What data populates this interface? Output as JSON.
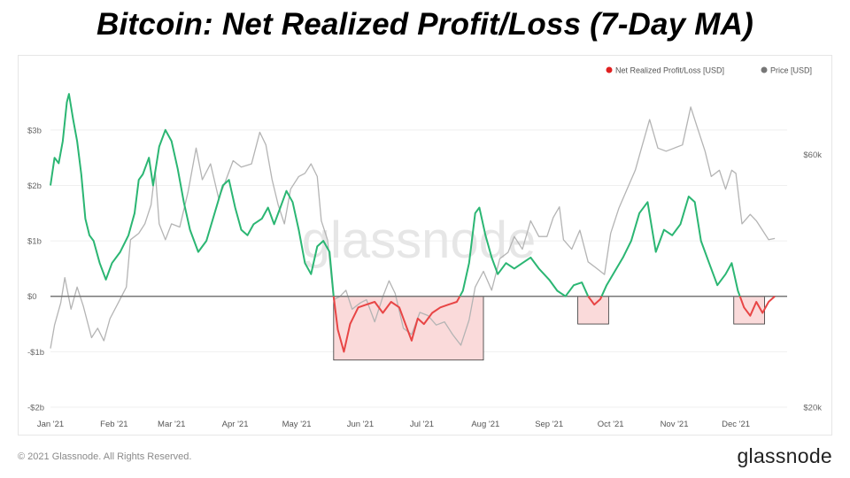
{
  "title": "Bitcoin: Net Realized Profit/Loss (7-Day MA)",
  "footer": {
    "copyright": "© 2021 Glassnode. All Rights Reserved.",
    "brand": "glassnode"
  },
  "watermark": "glassnode",
  "chart_data": {
    "type": "line",
    "title": "Bitcoin: Net Realized Profit/Loss (7-Day MA)",
    "legend": [
      "Net Realized Profit/Loss [USD]",
      "Price [USD]"
    ],
    "legend_position": "top-right",
    "grid": true,
    "x_tick_labels": [
      "Jan '21",
      "Feb '21",
      "Mar '21",
      "Apr '21",
      "May '21",
      "Jun '21",
      "Jul '21",
      "Aug '21",
      "Sep '21",
      "Oct '21",
      "Nov '21",
      "Dec '21"
    ],
    "y_left": {
      "ylim": [
        -2,
        3.7
      ],
      "ticks": [
        -2,
        -1,
        0,
        1,
        2,
        3
      ],
      "tick_labels": [
        "-$2b",
        "-$1b",
        "$0",
        "$1b",
        "$2b",
        "$3b"
      ]
    },
    "y_right": {
      "ylim": [
        20000,
        70000
      ],
      "ticks": [
        20000,
        60000
      ],
      "tick_labels": [
        "$20k",
        "$60k"
      ]
    },
    "colors": {
      "profit": "#2bb673",
      "loss": "#e84545",
      "price": "#b4b4b4",
      "loss_box_fill": "#fadada",
      "loss_box_stroke": "#333333",
      "zero_line": "#777777"
    },
    "series": [
      {
        "name": "Net Realized Profit/Loss [USD]",
        "axis": "left",
        "points": [
          [
            "2021-01-01",
            2.0
          ],
          [
            "2021-01-03",
            2.5
          ],
          [
            "2021-01-05",
            2.4
          ],
          [
            "2021-01-07",
            2.8
          ],
          [
            "2021-01-09",
            3.5
          ],
          [
            "2021-01-10",
            3.65
          ],
          [
            "2021-01-12",
            3.2
          ],
          [
            "2021-01-14",
            2.8
          ],
          [
            "2021-01-16",
            2.2
          ],
          [
            "2021-01-18",
            1.4
          ],
          [
            "2021-01-20",
            1.1
          ],
          [
            "2021-01-22",
            1.0
          ],
          [
            "2021-01-25",
            0.6
          ],
          [
            "2021-01-28",
            0.3
          ],
          [
            "2021-01-31",
            0.6
          ],
          [
            "2021-02-04",
            0.8
          ],
          [
            "2021-02-08",
            1.1
          ],
          [
            "2021-02-11",
            1.5
          ],
          [
            "2021-02-13",
            2.1
          ],
          [
            "2021-02-15",
            2.2
          ],
          [
            "2021-02-18",
            2.5
          ],
          [
            "2021-02-20",
            2.0
          ],
          [
            "2021-02-23",
            2.7
          ],
          [
            "2021-02-26",
            3.0
          ],
          [
            "2021-03-01",
            2.8
          ],
          [
            "2021-03-04",
            2.3
          ],
          [
            "2021-03-07",
            1.7
          ],
          [
            "2021-03-10",
            1.2
          ],
          [
            "2021-03-14",
            0.8
          ],
          [
            "2021-03-18",
            1.0
          ],
          [
            "2021-03-22",
            1.5
          ],
          [
            "2021-03-26",
            2.0
          ],
          [
            "2021-03-29",
            2.1
          ],
          [
            "2021-04-01",
            1.6
          ],
          [
            "2021-04-04",
            1.2
          ],
          [
            "2021-04-07",
            1.1
          ],
          [
            "2021-04-10",
            1.3
          ],
          [
            "2021-04-14",
            1.4
          ],
          [
            "2021-04-17",
            1.6
          ],
          [
            "2021-04-20",
            1.3
          ],
          [
            "2021-04-23",
            1.6
          ],
          [
            "2021-04-26",
            1.9
          ],
          [
            "2021-04-29",
            1.7
          ],
          [
            "2021-05-02",
            1.2
          ],
          [
            "2021-05-05",
            0.6
          ],
          [
            "2021-05-08",
            0.4
          ],
          [
            "2021-05-11",
            0.9
          ],
          [
            "2021-05-14",
            1.0
          ],
          [
            "2021-05-17",
            0.8
          ],
          [
            "2021-05-19",
            0.0
          ],
          [
            "2021-05-21",
            -0.6
          ],
          [
            "2021-05-24",
            -1.0
          ],
          [
            "2021-05-27",
            -0.5
          ],
          [
            "2021-05-31",
            -0.2
          ],
          [
            "2021-06-04",
            -0.15
          ],
          [
            "2021-06-08",
            -0.1
          ],
          [
            "2021-06-12",
            -0.3
          ],
          [
            "2021-06-16",
            -0.1
          ],
          [
            "2021-06-20",
            -0.2
          ],
          [
            "2021-06-23",
            -0.5
          ],
          [
            "2021-06-26",
            -0.8
          ],
          [
            "2021-06-29",
            -0.4
          ],
          [
            "2021-07-02",
            -0.5
          ],
          [
            "2021-07-06",
            -0.3
          ],
          [
            "2021-07-10",
            -0.2
          ],
          [
            "2021-07-14",
            -0.15
          ],
          [
            "2021-07-18",
            -0.1
          ],
          [
            "2021-07-21",
            0.1
          ],
          [
            "2021-07-24",
            0.6
          ],
          [
            "2021-07-27",
            1.5
          ],
          [
            "2021-07-29",
            1.6
          ],
          [
            "2021-08-01",
            1.1
          ],
          [
            "2021-08-04",
            0.7
          ],
          [
            "2021-08-07",
            0.4
          ],
          [
            "2021-08-11",
            0.6
          ],
          [
            "2021-08-15",
            0.5
          ],
          [
            "2021-08-19",
            0.6
          ],
          [
            "2021-08-23",
            0.7
          ],
          [
            "2021-08-27",
            0.5
          ],
          [
            "2021-09-01",
            0.3
          ],
          [
            "2021-09-05",
            0.1
          ],
          [
            "2021-09-09",
            0.0
          ],
          [
            "2021-09-13",
            0.2
          ],
          [
            "2021-09-17",
            0.25
          ],
          [
            "2021-09-20",
            0.0
          ],
          [
            "2021-09-23",
            -0.15
          ],
          [
            "2021-09-26",
            -0.05
          ],
          [
            "2021-09-29",
            0.2
          ],
          [
            "2021-10-03",
            0.45
          ],
          [
            "2021-10-07",
            0.7
          ],
          [
            "2021-10-11",
            1.0
          ],
          [
            "2021-10-15",
            1.5
          ],
          [
            "2021-10-19",
            1.7
          ],
          [
            "2021-10-23",
            0.8
          ],
          [
            "2021-10-27",
            1.2
          ],
          [
            "2021-10-31",
            1.1
          ],
          [
            "2021-11-04",
            1.3
          ],
          [
            "2021-11-08",
            1.8
          ],
          [
            "2021-11-11",
            1.7
          ],
          [
            "2021-11-14",
            1.0
          ],
          [
            "2021-11-18",
            0.6
          ],
          [
            "2021-11-22",
            0.2
          ],
          [
            "2021-11-26",
            0.4
          ],
          [
            "2021-11-29",
            0.6
          ],
          [
            "2021-12-02",
            0.1
          ],
          [
            "2021-12-05",
            -0.2
          ],
          [
            "2021-12-08",
            -0.35
          ],
          [
            "2021-12-11",
            -0.1
          ],
          [
            "2021-12-14",
            -0.3
          ],
          [
            "2021-12-17",
            -0.1
          ],
          [
            "2021-12-20",
            0.0
          ]
        ]
      },
      {
        "name": "Price [USD]",
        "axis": "right",
        "points": [
          [
            "2021-01-01",
            29300
          ],
          [
            "2021-01-03",
            33000
          ],
          [
            "2021-01-06",
            36500
          ],
          [
            "2021-01-08",
            40500
          ],
          [
            "2021-01-11",
            35500
          ],
          [
            "2021-01-14",
            39000
          ],
          [
            "2021-01-17",
            36000
          ],
          [
            "2021-01-21",
            31000
          ],
          [
            "2021-01-24",
            32500
          ],
          [
            "2021-01-27",
            30500
          ],
          [
            "2021-01-30",
            34000
          ],
          [
            "2021-02-03",
            36500
          ],
          [
            "2021-02-07",
            39000
          ],
          [
            "2021-02-09",
            46500
          ],
          [
            "2021-02-13",
            47500
          ],
          [
            "2021-02-16",
            49000
          ],
          [
            "2021-02-19",
            52000
          ],
          [
            "2021-02-21",
            57500
          ],
          [
            "2021-02-23",
            49000
          ],
          [
            "2021-02-26",
            46500
          ],
          [
            "2021-03-01",
            49000
          ],
          [
            "2021-03-05",
            48500
          ],
          [
            "2021-03-09",
            54000
          ],
          [
            "2021-03-13",
            61000
          ],
          [
            "2021-03-16",
            56000
          ],
          [
            "2021-03-20",
            58500
          ],
          [
            "2021-03-24",
            53000
          ],
          [
            "2021-03-27",
            55500
          ],
          [
            "2021-03-31",
            59000
          ],
          [
            "2021-04-04",
            58000
          ],
          [
            "2021-04-09",
            58500
          ],
          [
            "2021-04-13",
            63500
          ],
          [
            "2021-04-16",
            61500
          ],
          [
            "2021-04-19",
            56000
          ],
          [
            "2021-04-22",
            52000
          ],
          [
            "2021-04-25",
            49000
          ],
          [
            "2021-04-28",
            54500
          ],
          [
            "2021-05-02",
            56500
          ],
          [
            "2021-05-05",
            57000
          ],
          [
            "2021-05-08",
            58500
          ],
          [
            "2021-05-11",
            56500
          ],
          [
            "2021-05-13",
            49500
          ],
          [
            "2021-05-16",
            46500
          ],
          [
            "2021-05-19",
            37000
          ],
          [
            "2021-05-22",
            37500
          ],
          [
            "2021-05-25",
            38500
          ],
          [
            "2021-05-28",
            35500
          ],
          [
            "2021-06-01",
            36500
          ],
          [
            "2021-06-04",
            37000
          ],
          [
            "2021-06-08",
            33500
          ],
          [
            "2021-06-12",
            37500
          ],
          [
            "2021-06-15",
            40000
          ],
          [
            "2021-06-18",
            38000
          ],
          [
            "2021-06-22",
            32500
          ],
          [
            "2021-06-26",
            31500
          ],
          [
            "2021-06-30",
            35000
          ],
          [
            "2021-07-04",
            34500
          ],
          [
            "2021-07-08",
            33000
          ],
          [
            "2021-07-12",
            33500
          ],
          [
            "2021-07-16",
            31500
          ],
          [
            "2021-07-20",
            29800
          ],
          [
            "2021-07-24",
            33800
          ],
          [
            "2021-07-27",
            39000
          ],
          [
            "2021-07-31",
            41500
          ],
          [
            "2021-08-04",
            38500
          ],
          [
            "2021-08-08",
            43500
          ],
          [
            "2021-08-12",
            44500
          ],
          [
            "2021-08-15",
            47000
          ],
          [
            "2021-08-19",
            45000
          ],
          [
            "2021-08-23",
            49500
          ],
          [
            "2021-08-27",
            47000
          ],
          [
            "2021-08-31",
            47000
          ],
          [
            "2021-09-03",
            50000
          ],
          [
            "2021-09-06",
            51700
          ],
          [
            "2021-09-08",
            46500
          ],
          [
            "2021-09-12",
            45000
          ],
          [
            "2021-09-16",
            48000
          ],
          [
            "2021-09-20",
            43000
          ],
          [
            "2021-09-24",
            42000
          ],
          [
            "2021-09-28",
            41000
          ],
          [
            "2021-10-01",
            47500
          ],
          [
            "2021-10-05",
            51500
          ],
          [
            "2021-10-09",
            54500
          ],
          [
            "2021-10-13",
            57500
          ],
          [
            "2021-10-16",
            61000
          ],
          [
            "2021-10-20",
            65500
          ],
          [
            "2021-10-24",
            61000
          ],
          [
            "2021-10-28",
            60500
          ],
          [
            "2021-11-01",
            61000
          ],
          [
            "2021-11-05",
            61500
          ],
          [
            "2021-11-09",
            67500
          ],
          [
            "2021-11-12",
            64500
          ],
          [
            "2021-11-16",
            60500
          ],
          [
            "2021-11-19",
            56500
          ],
          [
            "2021-11-23",
            57500
          ],
          [
            "2021-11-26",
            54500
          ],
          [
            "2021-11-29",
            57500
          ],
          [
            "2021-12-01",
            57000
          ],
          [
            "2021-12-04",
            49000
          ],
          [
            "2021-12-08",
            50500
          ],
          [
            "2021-12-11",
            49500
          ],
          [
            "2021-12-14",
            48000
          ],
          [
            "2021-12-17",
            46500
          ],
          [
            "2021-12-20",
            46700
          ]
        ]
      }
    ],
    "highlight_ranges": [
      {
        "x": [
          "2021-05-19",
          "2021-07-31"
        ],
        "y": [
          -1.15,
          0
        ]
      },
      {
        "x": [
          "2021-09-15",
          "2021-09-30"
        ],
        "y": [
          -0.5,
          0
        ]
      },
      {
        "x": [
          "2021-11-30",
          "2021-12-15"
        ],
        "y": [
          -0.5,
          0
        ]
      }
    ]
  }
}
